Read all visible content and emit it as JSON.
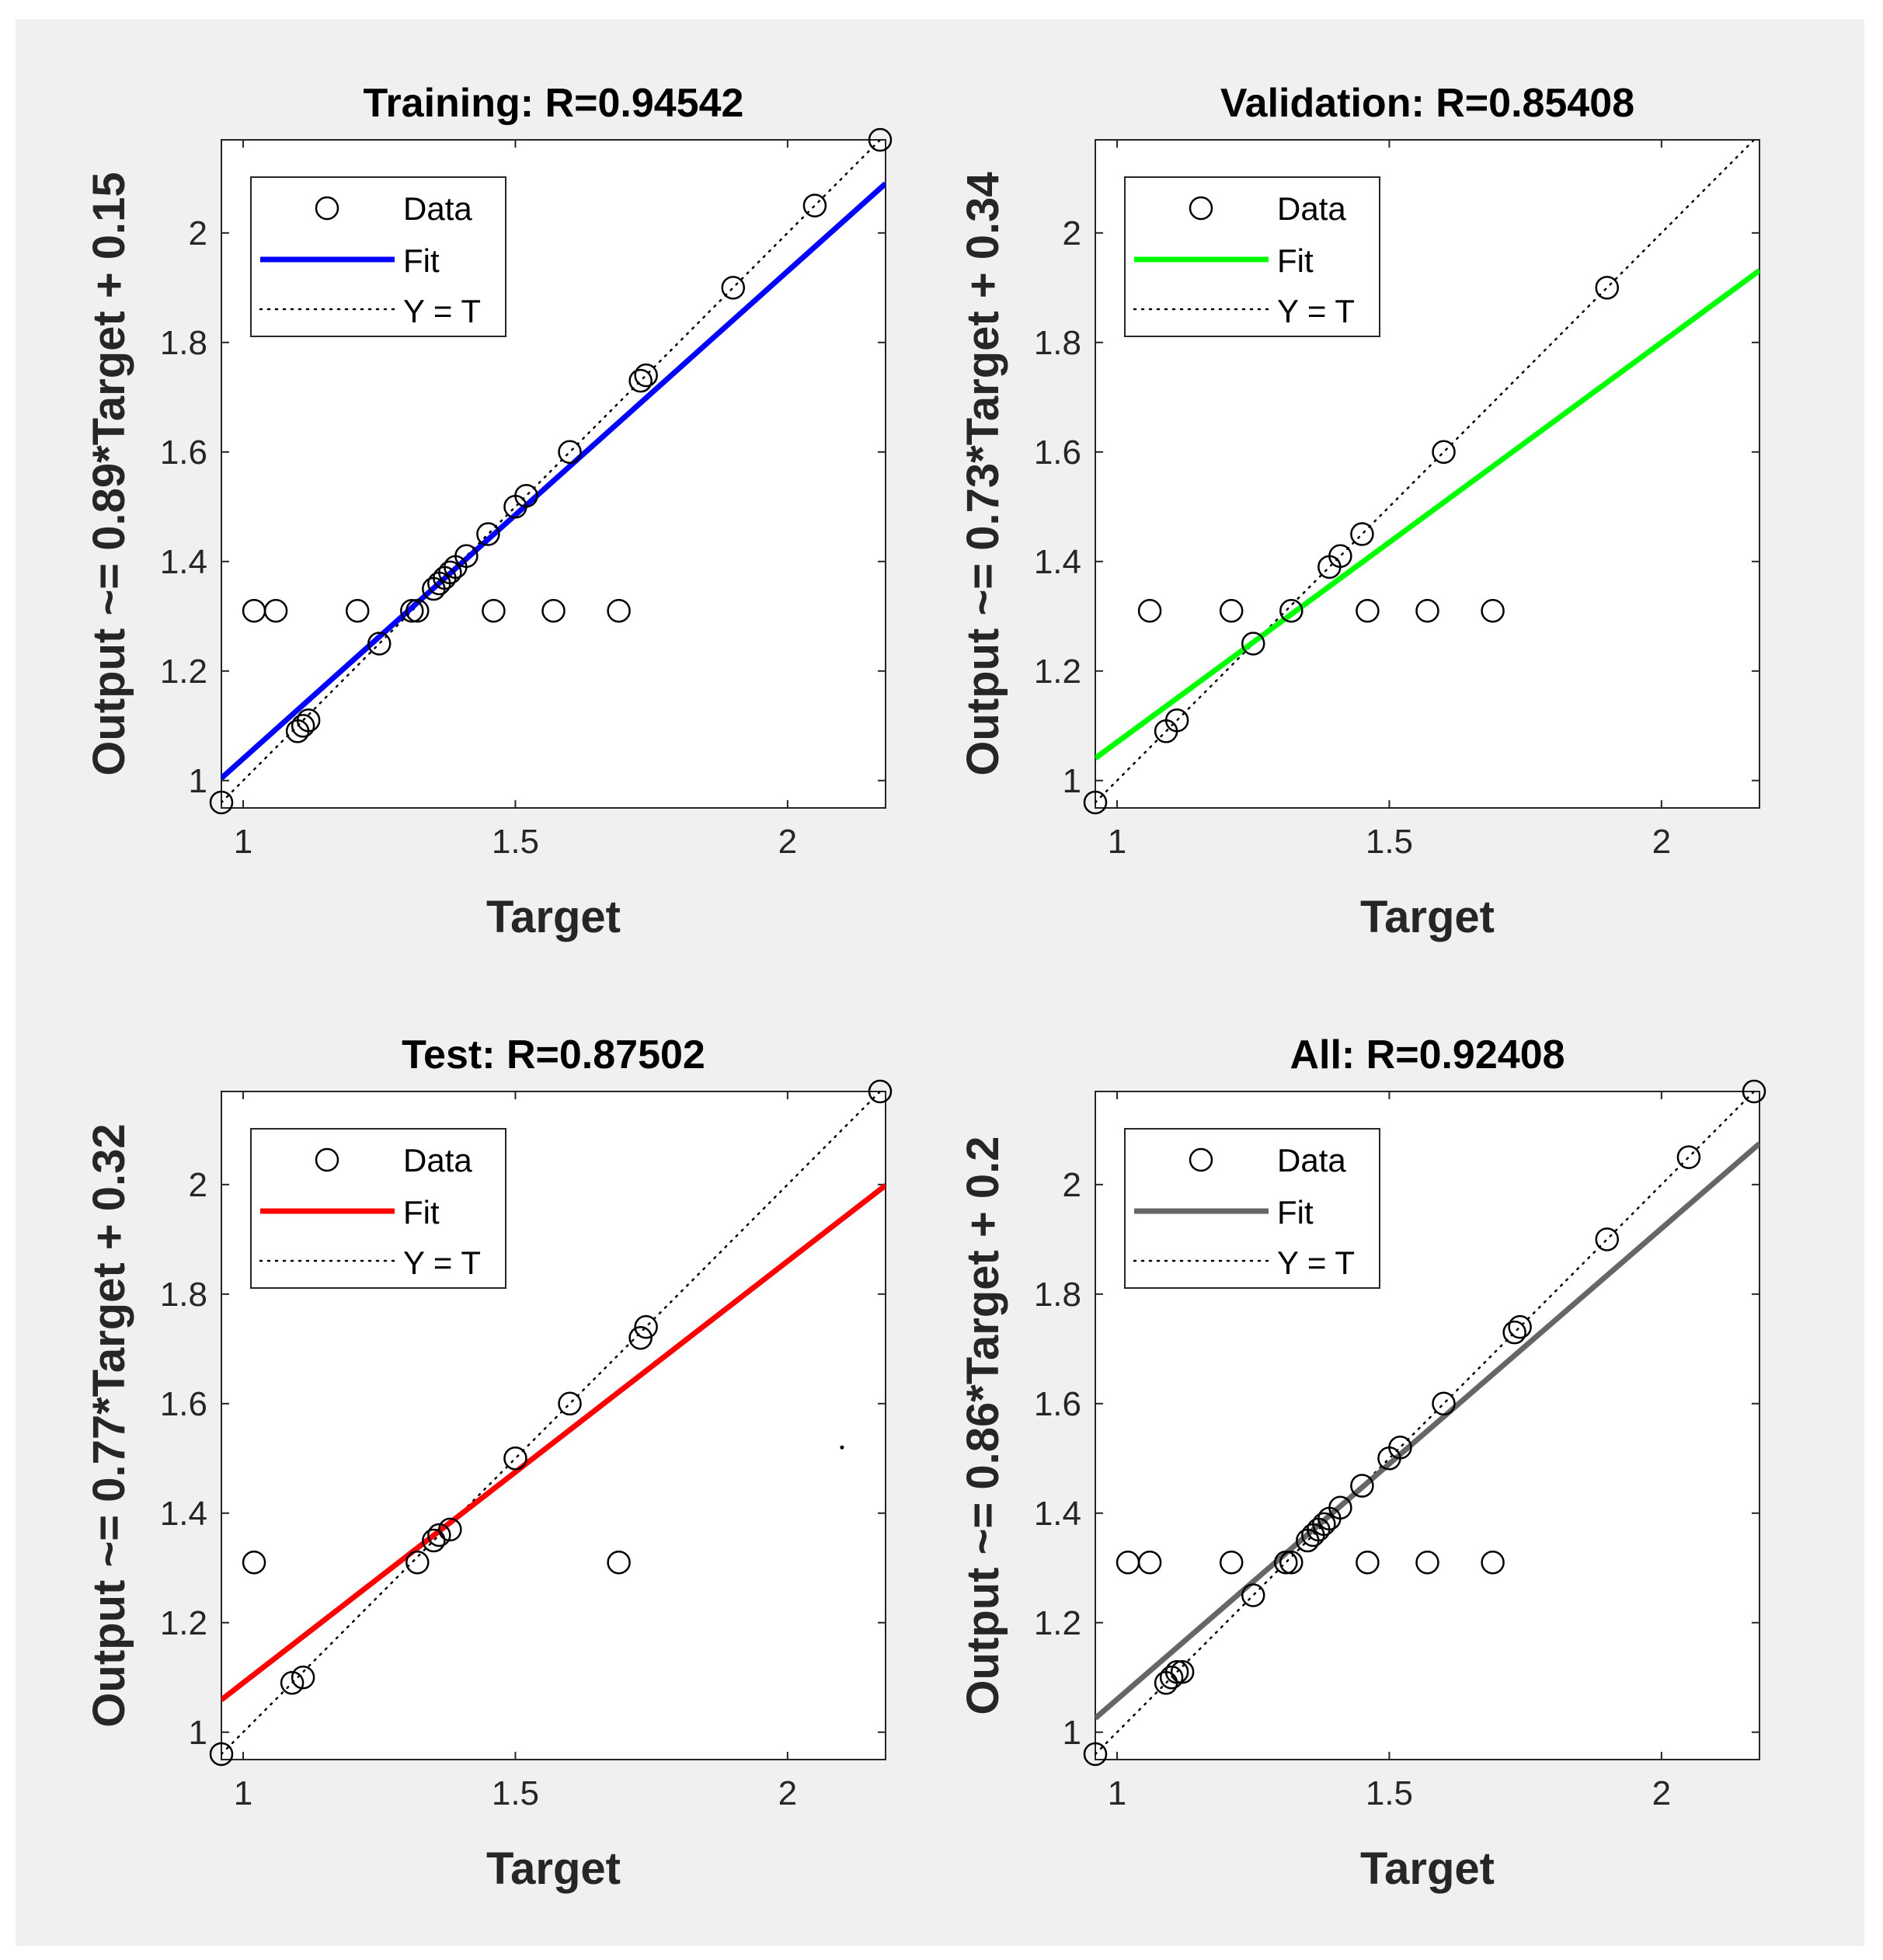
{
  "chart_data": [
    {
      "type": "scatter",
      "title": "Training: R=0.94542",
      "xlabel": "Target",
      "ylabel": "Output ~= 0.89*Target + 0.15",
      "xlim": [
        0.96,
        2.18
      ],
      "ylim": [
        0.95,
        2.17
      ],
      "xticks": [
        "1",
        "1.5",
        "2"
      ],
      "yticks": [
        "1",
        "1.2",
        "1.4",
        "1.6",
        "1.8",
        "2"
      ],
      "fit_color": "#0000ff",
      "fit": {
        "slope": 0.89,
        "intercept": 0.15
      },
      "legend": {
        "position": "top-left",
        "entries": [
          "Data",
          "Fit",
          "Y = T"
        ]
      },
      "points": [
        [
          0.96,
          0.96
        ],
        [
          1.02,
          1.31
        ],
        [
          1.06,
          1.31
        ],
        [
          1.1,
          1.09
        ],
        [
          1.11,
          1.1
        ],
        [
          1.12,
          1.11
        ],
        [
          1.21,
          1.31
        ],
        [
          1.25,
          1.25
        ],
        [
          1.31,
          1.31
        ],
        [
          1.32,
          1.31
        ],
        [
          1.35,
          1.35
        ],
        [
          1.36,
          1.36
        ],
        [
          1.37,
          1.37
        ],
        [
          1.38,
          1.38
        ],
        [
          1.39,
          1.39
        ],
        [
          1.41,
          1.41
        ],
        [
          1.45,
          1.45
        ],
        [
          1.46,
          1.31
        ],
        [
          1.5,
          1.5
        ],
        [
          1.52,
          1.52
        ],
        [
          1.57,
          1.31
        ],
        [
          1.6,
          1.6
        ],
        [
          1.69,
          1.31
        ],
        [
          1.73,
          1.73
        ],
        [
          1.74,
          1.74
        ],
        [
          1.9,
          1.9
        ],
        [
          2.05,
          2.05
        ],
        [
          2.17,
          2.17
        ]
      ]
    },
    {
      "type": "scatter",
      "title": "Validation: R=0.85408",
      "xlabel": "Target",
      "ylabel": "Output ~= 0.73*Target + 0.34",
      "xlim": [
        0.96,
        2.18
      ],
      "ylim": [
        0.95,
        2.17
      ],
      "xticks": [
        "1",
        "1.5",
        "2"
      ],
      "yticks": [
        "1",
        "1.2",
        "1.4",
        "1.6",
        "1.8",
        "2"
      ],
      "fit_color": "#00ff00",
      "fit": {
        "slope": 0.73,
        "intercept": 0.34
      },
      "legend": {
        "position": "top-left",
        "entries": [
          "Data",
          "Fit",
          "Y = T"
        ]
      },
      "points": [
        [
          0.96,
          0.96
        ],
        [
          1.06,
          1.31
        ],
        [
          1.09,
          1.09
        ],
        [
          1.11,
          1.11
        ],
        [
          1.21,
          1.31
        ],
        [
          1.25,
          1.25
        ],
        [
          1.32,
          1.31
        ],
        [
          1.39,
          1.39
        ],
        [
          1.41,
          1.41
        ],
        [
          1.45,
          1.45
        ],
        [
          1.46,
          1.31
        ],
        [
          1.57,
          1.31
        ],
        [
          1.6,
          1.6
        ],
        [
          1.69,
          1.31
        ],
        [
          1.9,
          1.9
        ]
      ]
    },
    {
      "type": "scatter",
      "title": "Test: R=0.87502",
      "xlabel": "Target",
      "ylabel": "Output ~= 0.77*Target + 0.32",
      "xlim": [
        0.96,
        2.18
      ],
      "ylim": [
        0.95,
        2.17
      ],
      "xticks": [
        "1",
        "1.5",
        "2"
      ],
      "yticks": [
        "1",
        "1.2",
        "1.4",
        "1.6",
        "1.8",
        "2"
      ],
      "fit_color": "#ff0000",
      "fit": {
        "slope": 0.77,
        "intercept": 0.32
      },
      "legend": {
        "position": "top-left",
        "entries": [
          "Data",
          "Fit",
          "Y = T"
        ]
      },
      "stray_marks": [
        [
          2.1,
          1.52
        ]
      ],
      "points": [
        [
          0.96,
          0.96
        ],
        [
          1.02,
          1.31
        ],
        [
          1.09,
          1.09
        ],
        [
          1.11,
          1.1
        ],
        [
          1.32,
          1.31
        ],
        [
          1.35,
          1.35
        ],
        [
          1.36,
          1.36
        ],
        [
          1.38,
          1.37
        ],
        [
          1.5,
          1.5
        ],
        [
          1.6,
          1.6
        ],
        [
          1.69,
          1.31
        ],
        [
          1.73,
          1.72
        ],
        [
          1.74,
          1.74
        ],
        [
          2.17,
          2.17
        ]
      ]
    },
    {
      "type": "scatter",
      "title": "All: R=0.92408",
      "xlabel": "Target",
      "ylabel": "Output ~= 0.86*Target + 0.2",
      "xlim": [
        0.96,
        2.18
      ],
      "ylim": [
        0.95,
        2.17
      ],
      "xticks": [
        "1",
        "1.5",
        "2"
      ],
      "yticks": [
        "1",
        "1.2",
        "1.4",
        "1.6",
        "1.8",
        "2"
      ],
      "fit_color": "#666666",
      "fit": {
        "slope": 0.86,
        "intercept": 0.2
      },
      "legend": {
        "position": "top-left",
        "entries": [
          "Data",
          "Fit",
          "Y = T"
        ]
      },
      "points": [
        [
          0.96,
          0.96
        ],
        [
          1.02,
          1.31
        ],
        [
          1.06,
          1.31
        ],
        [
          1.09,
          1.09
        ],
        [
          1.1,
          1.1
        ],
        [
          1.11,
          1.11
        ],
        [
          1.12,
          1.11
        ],
        [
          1.21,
          1.31
        ],
        [
          1.25,
          1.25
        ],
        [
          1.31,
          1.31
        ],
        [
          1.32,
          1.31
        ],
        [
          1.35,
          1.35
        ],
        [
          1.36,
          1.36
        ],
        [
          1.37,
          1.37
        ],
        [
          1.38,
          1.38
        ],
        [
          1.39,
          1.39
        ],
        [
          1.41,
          1.41
        ],
        [
          1.45,
          1.45
        ],
        [
          1.46,
          1.31
        ],
        [
          1.5,
          1.5
        ],
        [
          1.52,
          1.52
        ],
        [
          1.57,
          1.31
        ],
        [
          1.6,
          1.6
        ],
        [
          1.69,
          1.31
        ],
        [
          1.73,
          1.73
        ],
        [
          1.74,
          1.74
        ],
        [
          1.9,
          1.9
        ],
        [
          2.05,
          2.05
        ],
        [
          2.17,
          2.17
        ]
      ]
    }
  ]
}
